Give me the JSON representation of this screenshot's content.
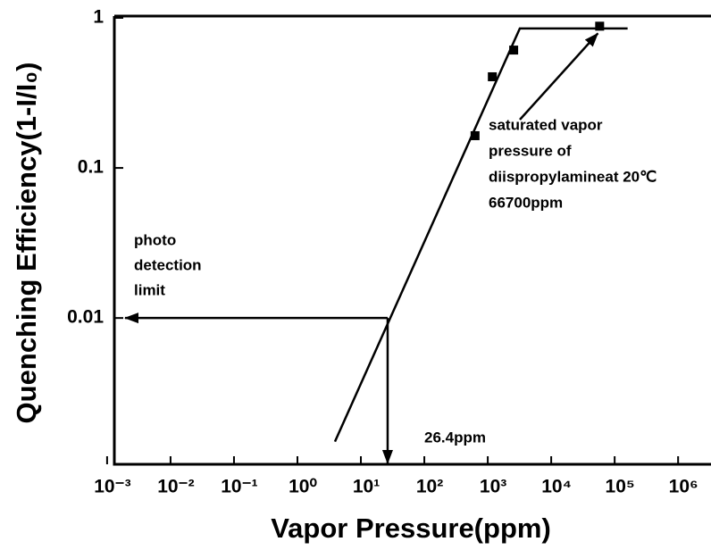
{
  "chart_data": {
    "type": "scatter",
    "xlabel": "Vapor Pressure(ppm)",
    "ylabel": "Quenching Efficiency(1-I/I₀)",
    "xscale": "log",
    "yscale": "log",
    "xlim": [
      0.0013,
      3300000
    ],
    "ylim": [
      0.00106,
      1
    ],
    "xticks": [
      {
        "value": 0.001,
        "label": "10⁻³"
      },
      {
        "value": 0.01,
        "label": "10⁻²"
      },
      {
        "value": 0.1,
        "label": "10⁻¹"
      },
      {
        "value": 1,
        "label": "10⁰"
      },
      {
        "value": 10,
        "label": "10¹"
      },
      {
        "value": 100,
        "label": "10²"
      },
      {
        "value": 1000,
        "label": "10³"
      },
      {
        "value": 10000,
        "label": "10⁴"
      },
      {
        "value": 100000,
        "label": "10⁵"
      },
      {
        "value": 1000000,
        "label": "10⁶"
      }
    ],
    "yticks": [
      0.01,
      0.1,
      1
    ],
    "series": [
      {
        "x": [
          630,
          1180,
          2560,
          58000
        ],
        "values": [
          0.164,
          0.405,
          0.61,
          0.88
        ],
        "color": "#000000",
        "marker": "square"
      }
    ],
    "fit_line": {
      "x": [
        3.9,
        3200,
        160000
      ],
      "values": [
        0.0015,
        0.85,
        0.85
      ],
      "color": "#000000"
    },
    "detection_limit": {
      "x": 26.4,
      "y": 0.01
    },
    "annotations": [
      {
        "lines": [
          "photo",
          "detection",
          "limit"
        ]
      },
      {
        "lines": [
          "saturated vapor",
          "pressure of",
          "diispropylamineat 20℃",
          "66700ppm"
        ]
      },
      {
        "lines": [
          "26.4ppm"
        ]
      }
    ]
  }
}
